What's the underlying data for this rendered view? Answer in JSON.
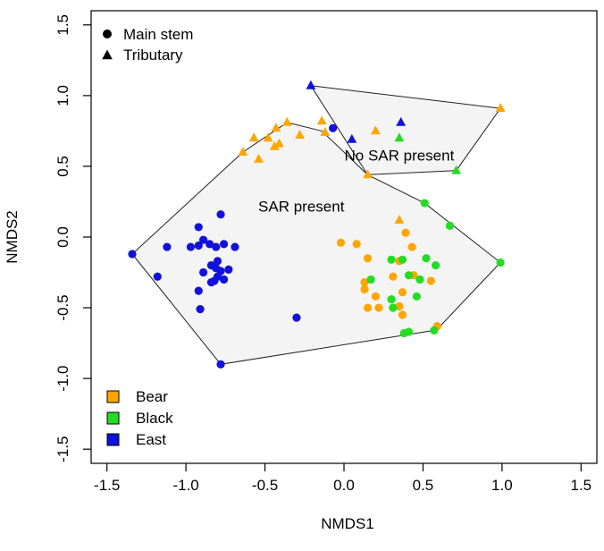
{
  "chart_data": {
    "type": "scatter",
    "title": "",
    "xlabel": "NMDS1",
    "ylabel": "NMDS2",
    "xlim": [
      -1.6,
      1.6
    ],
    "ylim": [
      -1.6,
      1.6
    ],
    "x_ticks": [
      -1.5,
      -1.0,
      -0.5,
      0.0,
      0.5,
      1.0,
      1.5
    ],
    "x_tick_labels": [
      "-1.5",
      "-1.0",
      "-0.5",
      "0.0",
      "0.5",
      "1.0",
      "1.5"
    ],
    "y_ticks": [
      -1.5,
      -1.0,
      -0.5,
      0.0,
      0.5,
      1.0,
      1.5
    ],
    "y_tick_labels": [
      "-1.5",
      "-1.0",
      "-0.5",
      "0.0",
      "0.5",
      "1.0",
      "1.5"
    ],
    "grid": false,
    "shape_legend": {
      "placement": "top-left",
      "items": [
        {
          "label": "Main stem",
          "shape": "circle"
        },
        {
          "label": "Tributary",
          "shape": "triangle"
        }
      ]
    },
    "color_legend": {
      "placement": "bottom-left",
      "items": [
        {
          "label": "Bear",
          "color": "#FFA500"
        },
        {
          "label": "Black",
          "color": "#22DD22"
        },
        {
          "label": "East",
          "color": "#1111DD"
        }
      ]
    },
    "hulls": [
      {
        "label": "SAR present",
        "label_pos": [
          -0.27,
          0.21
        ],
        "vertices": [
          [
            -1.34,
            -0.12
          ],
          [
            -0.78,
            -0.9
          ],
          [
            0.57,
            -0.66
          ],
          [
            0.6,
            -0.64
          ],
          [
            0.99,
            -0.18
          ],
          [
            0.51,
            0.24
          ],
          [
            0.15,
            0.44
          ],
          [
            -0.14,
            0.75
          ],
          [
            -0.36,
            0.81
          ],
          [
            -0.64,
            0.6
          ],
          [
            -1.34,
            -0.12
          ]
        ]
      },
      {
        "label": "No SAR present",
        "label_pos": [
          0.35,
          0.57
        ],
        "vertices": [
          [
            -0.21,
            1.07
          ],
          [
            0.15,
            0.44
          ],
          [
            0.71,
            0.47
          ],
          [
            0.99,
            0.91
          ],
          [
            -0.21,
            1.07
          ]
        ]
      }
    ],
    "series": [
      {
        "name": "Bear",
        "color": "#FFA500",
        "shape": "circle",
        "points": [
          [
            -0.02,
            -0.04
          ],
          [
            0.08,
            -0.05
          ],
          [
            0.15,
            -0.15
          ],
          [
            0.13,
            -0.32
          ],
          [
            0.2,
            -0.42
          ],
          [
            0.15,
            -0.5
          ],
          [
            0.22,
            -0.5
          ],
          [
            0.31,
            -0.28
          ],
          [
            0.35,
            -0.17
          ],
          [
            0.39,
            0.03
          ],
          [
            0.43,
            -0.07
          ],
          [
            0.37,
            -0.39
          ],
          [
            0.35,
            -0.49
          ],
          [
            0.37,
            -0.55
          ],
          [
            0.44,
            -0.27
          ],
          [
            0.55,
            -0.31
          ],
          [
            0.59,
            -0.63
          ],
          [
            0.13,
            -0.37
          ]
        ]
      },
      {
        "name": "Black",
        "color": "#22DD22",
        "shape": "circle",
        "points": [
          [
            0.17,
            -0.3
          ],
          [
            0.3,
            -0.16
          ],
          [
            0.37,
            -0.16
          ],
          [
            0.3,
            -0.44
          ],
          [
            0.31,
            -0.5
          ],
          [
            0.41,
            -0.27
          ],
          [
            0.46,
            -0.42
          ],
          [
            0.48,
            -0.3
          ],
          [
            0.52,
            -0.15
          ],
          [
            0.58,
            -0.2
          ],
          [
            0.38,
            -0.68
          ],
          [
            0.41,
            -0.67
          ],
          [
            0.57,
            -0.66
          ],
          [
            0.51,
            0.24
          ],
          [
            0.67,
            0.08
          ],
          [
            0.99,
            -0.18
          ]
        ]
      },
      {
        "name": "East",
        "color": "#1111DD",
        "shape": "circle",
        "points": [
          [
            -1.34,
            -0.12
          ],
          [
            -1.12,
            -0.07
          ],
          [
            -1.18,
            -0.28
          ],
          [
            -0.92,
            0.07
          ],
          [
            -0.78,
            0.16
          ],
          [
            -0.89,
            -0.02
          ],
          [
            -0.85,
            -0.05
          ],
          [
            -0.92,
            -0.06
          ],
          [
            -0.81,
            -0.07
          ],
          [
            -0.97,
            -0.07
          ],
          [
            -0.69,
            -0.07
          ],
          [
            -0.76,
            -0.05
          ],
          [
            -0.8,
            -0.17
          ],
          [
            -0.84,
            -0.2
          ],
          [
            -0.81,
            -0.22
          ],
          [
            -0.78,
            -0.24
          ],
          [
            -0.73,
            -0.23
          ],
          [
            -0.89,
            -0.25
          ],
          [
            -0.8,
            -0.28
          ],
          [
            -0.76,
            -0.3
          ],
          [
            -0.82,
            -0.31
          ],
          [
            -0.84,
            -0.32
          ],
          [
            -0.92,
            -0.38
          ],
          [
            -0.91,
            -0.51
          ],
          [
            -0.3,
            -0.57
          ],
          [
            -0.78,
            -0.9
          ],
          [
            -0.07,
            0.77
          ]
        ]
      },
      {
        "name": "Bear",
        "color": "#FFA500",
        "shape": "triangle",
        "points": [
          [
            -0.64,
            0.6
          ],
          [
            -0.57,
            0.7
          ],
          [
            -0.48,
            0.7
          ],
          [
            -0.54,
            0.55
          ],
          [
            -0.43,
            0.77
          ],
          [
            -0.44,
            0.64
          ],
          [
            -0.41,
            0.66
          ],
          [
            -0.36,
            0.81
          ],
          [
            -0.28,
            0.72
          ],
          [
            -0.14,
            0.82
          ],
          [
            -0.12,
            0.74
          ],
          [
            0.15,
            0.44
          ],
          [
            0.2,
            0.75
          ],
          [
            0.35,
            0.12
          ],
          [
            0.99,
            0.91
          ]
        ]
      },
      {
        "name": "Black",
        "color": "#22DD22",
        "shape": "triangle",
        "points": [
          [
            0.35,
            0.7
          ],
          [
            0.71,
            0.47
          ]
        ]
      },
      {
        "name": "East",
        "color": "#1111DD",
        "shape": "triangle",
        "points": [
          [
            -0.21,
            1.07
          ],
          [
            0.05,
            0.69
          ],
          [
            0.36,
            0.81
          ]
        ]
      }
    ]
  }
}
